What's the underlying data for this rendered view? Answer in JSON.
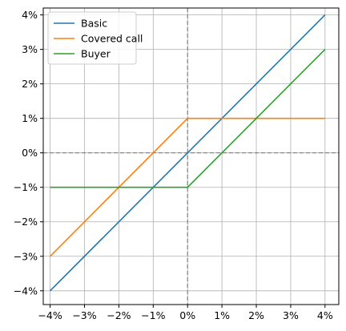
{
  "chart_data": {
    "type": "line",
    "title": "",
    "xlabel": "",
    "ylabel": "",
    "xlim": [
      -4.2,
      4.4
    ],
    "ylim": [
      -4.4,
      4.2
    ],
    "grid": true,
    "legend_position": "top-left",
    "x_ticks": [
      -4,
      -3,
      -2,
      -1,
      0,
      1,
      2,
      3,
      4
    ],
    "x_tick_labels": [
      "−4%",
      "−3%",
      "−2%",
      "−1%",
      "0%",
      "1%",
      "2%",
      "3%",
      "4%"
    ],
    "y_ticks": [
      -4,
      -3,
      -2,
      -1,
      0,
      1,
      2,
      3,
      4
    ],
    "y_tick_labels": [
      "−4%",
      "−3%",
      "−2%",
      "−1%",
      "0%",
      "1%",
      "2%",
      "3%",
      "4%"
    ],
    "reference_lines": {
      "x": 0,
      "y": 0,
      "style": "dashed",
      "color": "#808080"
    },
    "series": [
      {
        "name": "Basic",
        "color": "#1f77b4",
        "x": [
          -4,
          4
        ],
        "y": [
          -4,
          4
        ]
      },
      {
        "name": "Covered call",
        "color": "#ff7f0e",
        "x": [
          -4,
          0,
          4
        ],
        "y": [
          -3,
          1,
          1
        ]
      },
      {
        "name": "Buyer",
        "color": "#2ca02c",
        "x": [
          -4,
          0,
          4
        ],
        "y": [
          -1,
          -1,
          3
        ]
      }
    ]
  }
}
